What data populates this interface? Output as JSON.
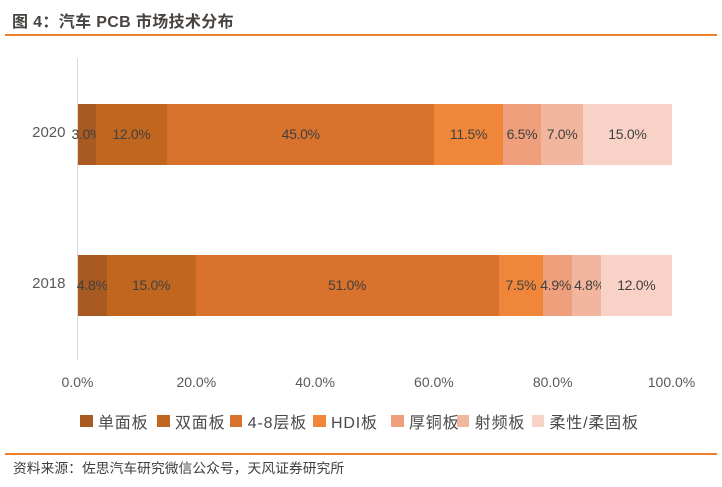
{
  "header": {
    "title": "图 4：汽车 PCB 市场技术分布"
  },
  "accent_color": "#EE7F2B",
  "chart_data": {
    "type": "bar",
    "variant": "horizontal-stacked",
    "title": "图 4：汽车 PCB 市场技术分布",
    "categories": [
      "2020",
      "2018"
    ],
    "series": [
      {
        "name": "单面板",
        "color": "#A85A21",
        "values": [
          3.0,
          4.8
        ]
      },
      {
        "name": "双面板",
        "color": "#C1661F",
        "values": [
          12.0,
          15.0
        ]
      },
      {
        "name": "4-8层板",
        "color": "#D8722C",
        "values": [
          45.0,
          51.0
        ]
      },
      {
        "name": "HDI板",
        "color": "#F0863A",
        "values": [
          11.5,
          7.5
        ]
      },
      {
        "name": "厚铜板",
        "color": "#EF9F7B",
        "values": [
          6.5,
          4.9
        ]
      },
      {
        "name": "射频板",
        "color": "#F2B69E",
        "values": [
          7.0,
          4.8
        ]
      },
      {
        "name": "柔性/柔固板",
        "color": "#F8D2C6",
        "values": [
          15.0,
          12.0
        ]
      }
    ],
    "x_ticks": [
      "0.0%",
      "20.0%",
      "40.0%",
      "60.0%",
      "80.0%",
      "100.0%"
    ],
    "xlim": [
      0,
      100
    ],
    "value_suffix": "%",
    "value_decimals": 1,
    "legend_position": "bottom",
    "gridlines": false
  },
  "footer": {
    "source": "资料来源：佐思汽车研究微信公众号，天风证券研究所"
  }
}
